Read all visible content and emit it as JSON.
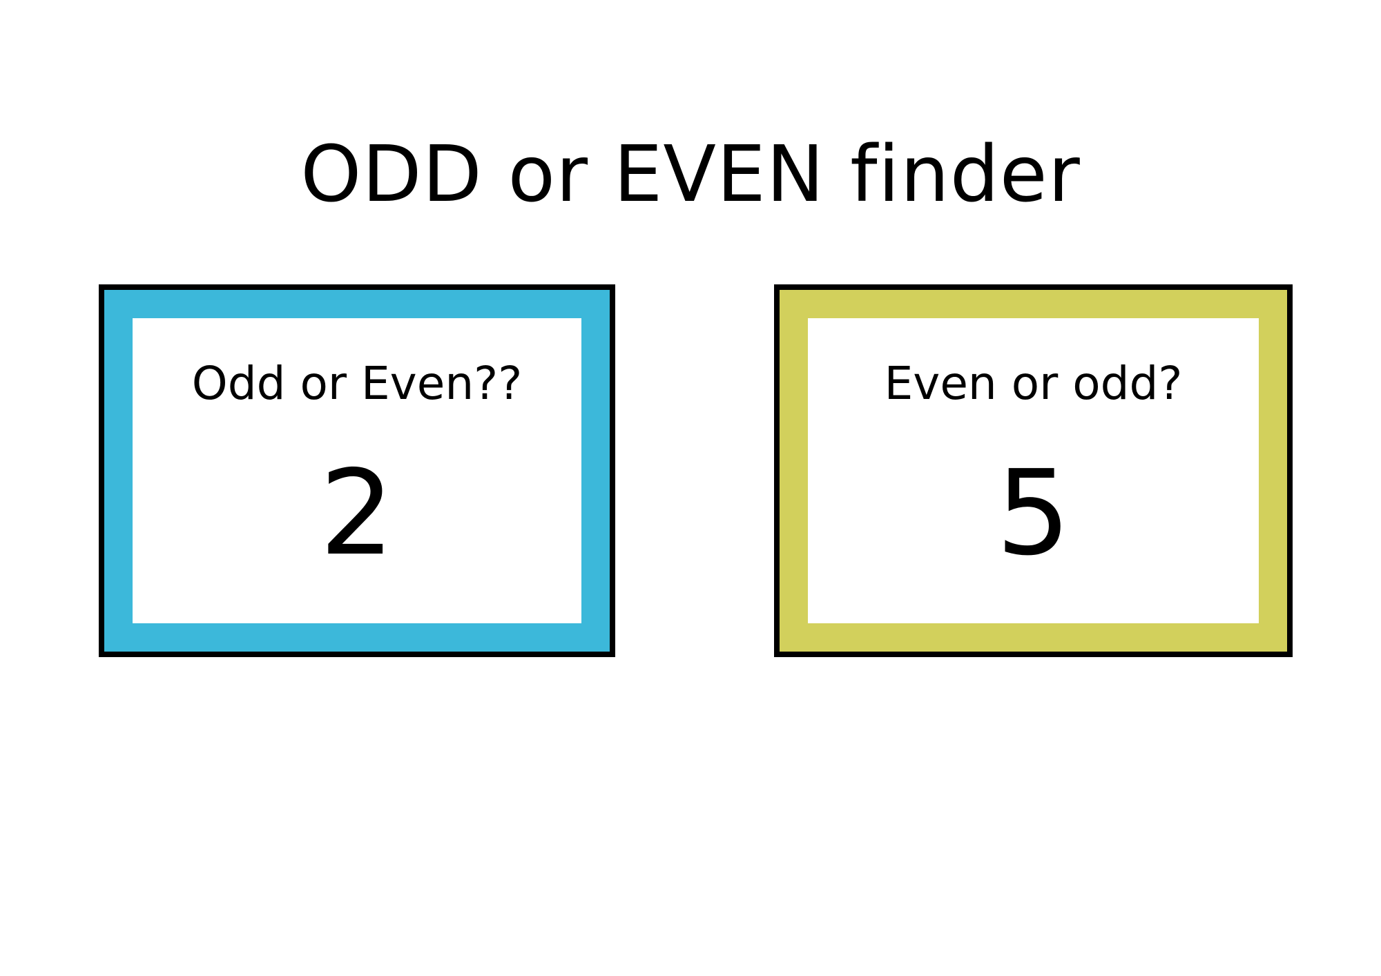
{
  "title": "ODD or EVEN finder",
  "cards": [
    {
      "question": "Odd or Even??",
      "number": "2",
      "border_color": "#3cb8da"
    },
    {
      "question": "Even or odd?",
      "number": "5",
      "border_color": "#d2d05c"
    }
  ]
}
